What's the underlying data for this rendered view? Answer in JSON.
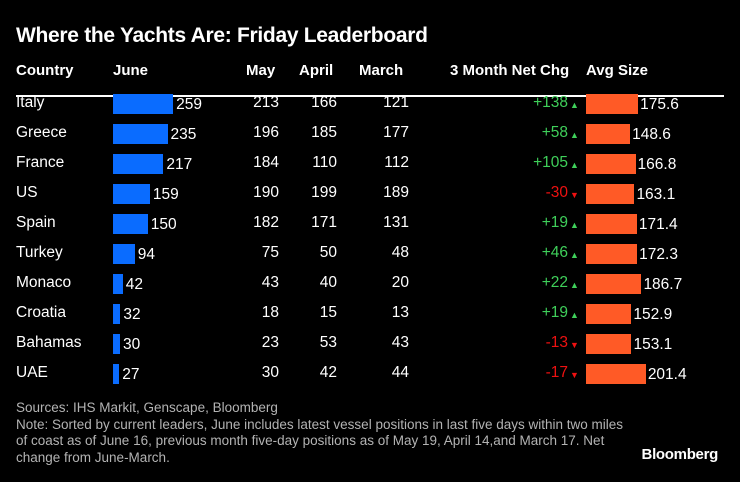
{
  "chart_data": {
    "type": "table",
    "title": "Where the Yachts Are: Friday Leaderboard",
    "columns": [
      "Country",
      "June",
      "May",
      "April",
      "March",
      "3 Month Net Chg",
      "Avg Size"
    ],
    "rows": [
      {
        "country": "Italy",
        "june": 259,
        "may": 213,
        "april": 166,
        "march": 121,
        "net": "+138",
        "dir": "up",
        "avg": "175.6"
      },
      {
        "country": "Greece",
        "june": 235,
        "may": 196,
        "april": 185,
        "march": 177,
        "net": "+58",
        "dir": "up",
        "avg": "148.6"
      },
      {
        "country": "France",
        "june": 217,
        "may": 184,
        "april": 110,
        "march": 112,
        "net": "+105",
        "dir": "up",
        "avg": "166.8"
      },
      {
        "country": "US",
        "june": 159,
        "may": 190,
        "april": 199,
        "march": 189,
        "net": "-30",
        "dir": "down",
        "avg": "163.1"
      },
      {
        "country": "Spain",
        "june": 150,
        "may": 182,
        "april": 171,
        "march": 131,
        "net": "+19",
        "dir": "up",
        "avg": "171.4"
      },
      {
        "country": "Turkey",
        "june": 94,
        "may": 75,
        "april": 50,
        "march": 48,
        "net": "+46",
        "dir": "up",
        "avg": "172.3"
      },
      {
        "country": "Monaco",
        "june": 42,
        "may": 43,
        "april": 40,
        "march": 20,
        "net": "+22",
        "dir": "up",
        "avg": "186.7"
      },
      {
        "country": "Croatia",
        "june": 32,
        "may": 18,
        "april": 15,
        "march": 13,
        "net": "+19",
        "dir": "up",
        "avg": "152.9"
      },
      {
        "country": "Bahamas",
        "june": 30,
        "may": 23,
        "april": 53,
        "march": 43,
        "net": "-13",
        "dir": "down",
        "avg": "153.1"
      },
      {
        "country": "UAE",
        "june": 27,
        "may": 30,
        "april": 42,
        "march": 44,
        "net": "-17",
        "dir": "down",
        "avg": "201.4"
      }
    ],
    "colors": {
      "june_bar": "#0a6cff",
      "avg_bar": "#ff5a26",
      "up": "#3fcf5a",
      "down": "#ee1111"
    }
  },
  "source": "Sources: IHS Markit, Genscape, Bloomberg",
  "note": "Note: Sorted by current leaders, June includes latest vessel positions in last five days within two miles of coast as of June 16, previous month five-day positions as of May 19, April 14,and March 17. Net change from June-March.",
  "logo": "Bloomberg"
}
